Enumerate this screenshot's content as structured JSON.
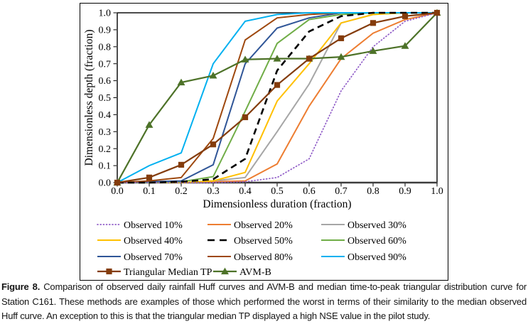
{
  "chart_data": {
    "type": "line",
    "title": "",
    "xlabel": "Dimensionless duration (fraction)",
    "ylabel": "Dimensionless depth (fraction)",
    "xlim": [
      0.0,
      1.0
    ],
    "ylim": [
      0.0,
      1.0
    ],
    "grid": false,
    "legend_position": "bottom",
    "x_tick_labels": [
      "0.0",
      "0.1",
      "0.2",
      "0.3",
      "0.4",
      "0.5",
      "0.6",
      "0.7",
      "0.8",
      "0.9",
      "1.0"
    ],
    "y_tick_labels": [
      "0.0",
      "0.1",
      "0.2",
      "0.3",
      "0.4",
      "0.5",
      "0.6",
      "0.7",
      "0.8",
      "0.9",
      "1.0"
    ],
    "x": [
      0.0,
      0.1,
      0.2,
      0.3,
      0.4,
      0.5,
      0.6,
      0.7,
      0.8,
      0.9,
      1.0
    ],
    "series": [
      {
        "name": "Observed 20%",
        "color": "#ED7D31",
        "style": "solid",
        "marker": "none",
        "values": [
          0,
          0,
          0,
          0.005,
          0.01,
          0.11,
          0.45,
          0.73,
          0.88,
          0.96,
          1.0
        ]
      },
      {
        "name": "Observed 30%",
        "color": "#A6A6A6",
        "style": "solid",
        "marker": "none",
        "values": [
          0,
          0,
          0,
          0.01,
          0.03,
          0.3,
          0.58,
          0.94,
          0.99,
          1.0,
          1.0
        ]
      },
      {
        "name": "Observed 40%",
        "color": "#FFC000",
        "style": "solid",
        "marker": "none",
        "values": [
          0,
          0,
          0,
          0.01,
          0.06,
          0.48,
          0.7,
          0.94,
          0.99,
          1.0,
          1.0
        ]
      },
      {
        "name": "Observed 60%",
        "color": "#70AD47",
        "style": "solid",
        "marker": "none",
        "values": [
          0,
          0,
          0.005,
          0.035,
          0.42,
          0.82,
          0.96,
          0.99,
          1.0,
          1.0,
          1.0
        ]
      },
      {
        "name": "Observed 70%",
        "color": "#2F5597",
        "style": "solid",
        "marker": "none",
        "values": [
          0,
          0.005,
          0.01,
          0.105,
          0.7,
          0.91,
          0.97,
          1.0,
          1.0,
          1.0,
          1.0
        ]
      },
      {
        "name": "Observed 80%",
        "color": "#9E480E",
        "style": "solid",
        "marker": "none",
        "values": [
          0,
          0.01,
          0.03,
          0.26,
          0.84,
          0.97,
          0.99,
          1.0,
          1.0,
          1.0,
          1.0
        ]
      },
      {
        "name": "Observed 90%",
        "color": "#00B0F0",
        "style": "solid",
        "marker": "none",
        "values": [
          0,
          0.1,
          0.175,
          0.7,
          0.95,
          0.99,
          1.0,
          1.0,
          1.0,
          1.0,
          1.0
        ]
      },
      {
        "name": "Observed 10%",
        "color": "#8F5BC7",
        "style": "dotted",
        "marker": "none",
        "values": [
          0,
          0,
          0,
          0,
          0.005,
          0.03,
          0.14,
          0.54,
          0.8,
          0.95,
          1.0
        ]
      },
      {
        "name": "Observed 50%",
        "color": "#000000",
        "style": "dashed",
        "marker": "none",
        "values": [
          0,
          0,
          0.005,
          0.02,
          0.14,
          0.66,
          0.89,
          0.98,
          1.0,
          1.0,
          1.0
        ]
      },
      {
        "name": "AVM-B",
        "color": "#4D7228",
        "style": "solid",
        "marker": "triangle",
        "values": [
          0,
          0.34,
          0.59,
          0.63,
          0.725,
          0.73,
          0.73,
          0.74,
          0.775,
          0.805,
          1.0
        ]
      },
      {
        "name": "Triangular Median TP",
        "color": "#843C0C",
        "style": "solid",
        "marker": "square",
        "values": [
          0,
          0.03,
          0.105,
          0.225,
          0.385,
          0.575,
          0.73,
          0.85,
          0.94,
          0.98,
          1.0
        ]
      }
    ],
    "legend_order": [
      "Observed 10%",
      "Observed 20%",
      "Observed 30%",
      "Observed 40%",
      "Observed 50%",
      "Observed 60%",
      "Observed 70%",
      "Observed 80%",
      "Observed 90%",
      "Triangular Median TP",
      "AVM-B"
    ]
  },
  "caption": {
    "label": "Figure 8.",
    "text": " Comparison of observed daily rainfall Huff curves and AVM-B and median time-to-peak triangular distribution curve for Station C161. These methods are examples of those which performed the worst in terms of their similarity to the median observed Huff curve. An exception to this is that the triangular median TP displayed a high NSE value in the pilot study."
  }
}
